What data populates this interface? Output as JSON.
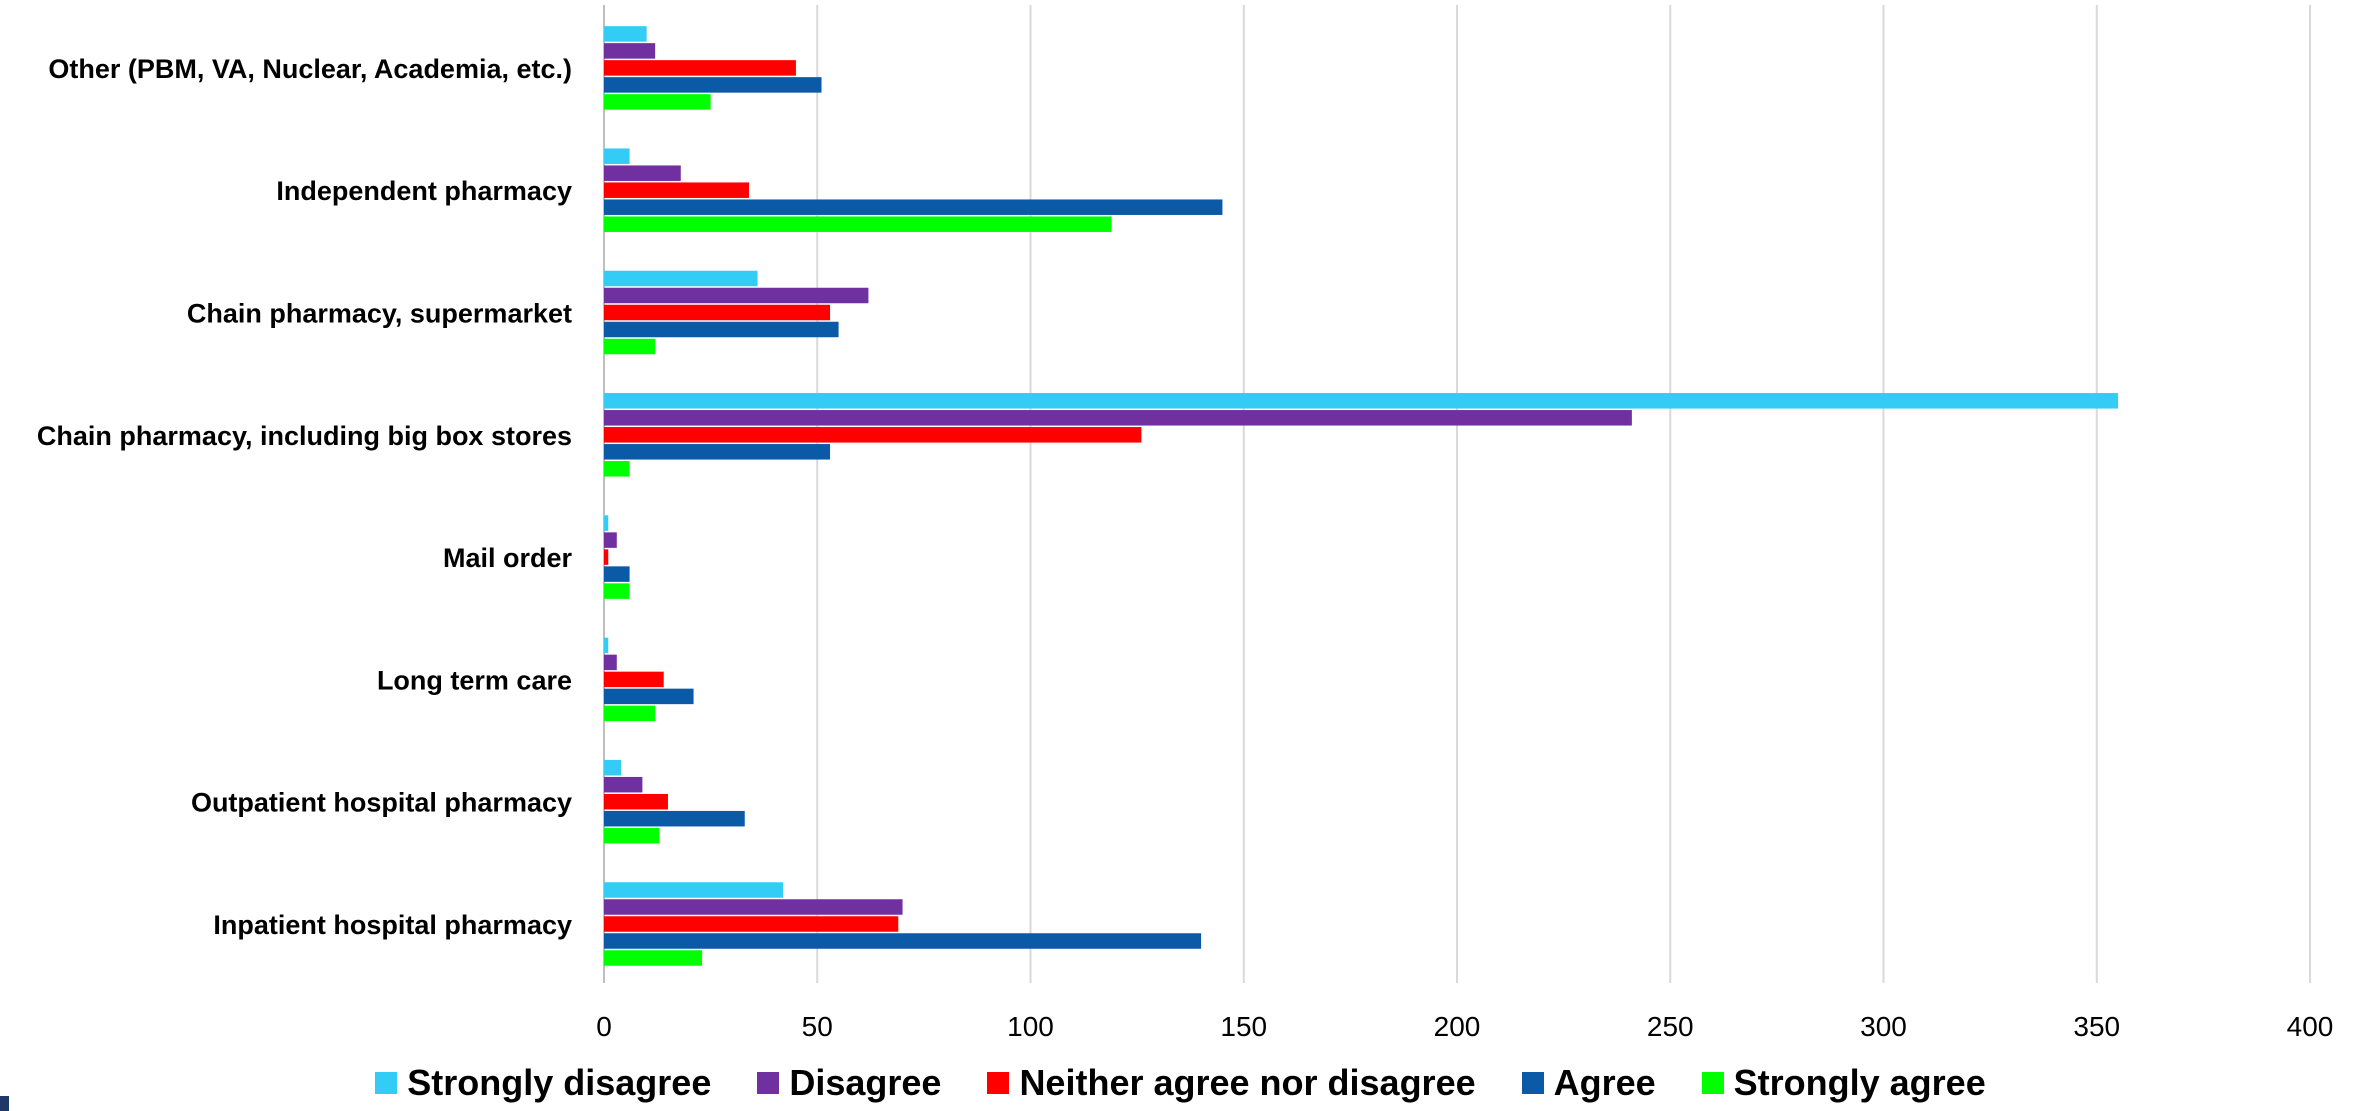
{
  "chart_data": {
    "type": "bar",
    "orientation": "horizontal",
    "categories": [
      "Inpatient hospital pharmacy",
      "Outpatient hospital pharmacy",
      "Long term care",
      "Mail order",
      "Chain pharmacy, including big box stores",
      "Chain pharmacy, supermarket",
      "Independent pharmacy",
      "Other (PBM, VA, Nuclear, Academia, etc.)"
    ],
    "series": [
      {
        "name": "Strongly disagree",
        "color": "#33ccf5",
        "values": [
          42,
          4,
          1,
          1,
          355,
          36,
          6,
          10
        ]
      },
      {
        "name": "Disagree",
        "color": "#7030a0",
        "values": [
          70,
          9,
          3,
          3,
          241,
          62,
          18,
          12
        ]
      },
      {
        "name": "Neither agree nor disagree",
        "color": "#ff0000",
        "values": [
          69,
          15,
          14,
          1,
          126,
          53,
          34,
          45
        ]
      },
      {
        "name": "Agree",
        "color": "#0a5aa8",
        "values": [
          140,
          33,
          21,
          6,
          53,
          55,
          145,
          51
        ]
      },
      {
        "name": "Strongly agree",
        "color": "#00ff00",
        "values": [
          23,
          13,
          12,
          6,
          6,
          12,
          119,
          25
        ]
      }
    ],
    "xlim": [
      0,
      400
    ],
    "xticks": [
      "0",
      "50",
      "100",
      "150",
      "200",
      "250",
      "300",
      "350",
      "400"
    ],
    "grid": "vertical",
    "legend_position": "bottom",
    "title": "",
    "xlabel": "",
    "ylabel": ""
  }
}
